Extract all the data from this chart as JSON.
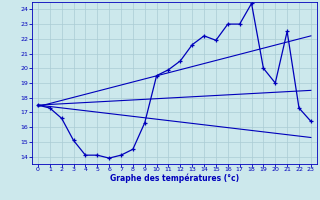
{
  "title": "Graphe des températures (°c)",
  "bg_color": "#cce8ec",
  "grid_color": "#aaccd4",
  "line_color": "#0000bb",
  "x_ticks": [
    0,
    1,
    2,
    3,
    4,
    5,
    6,
    7,
    8,
    9,
    10,
    11,
    12,
    13,
    14,
    15,
    16,
    17,
    18,
    19,
    20,
    21,
    22,
    23
  ],
  "ylim": [
    13.5,
    24.5
  ],
  "xlim": [
    -0.5,
    23.5
  ],
  "y_ticks": [
    14,
    15,
    16,
    17,
    18,
    19,
    20,
    21,
    22,
    23,
    24
  ],
  "series1_x": [
    0,
    1,
    2,
    3,
    4,
    5,
    6,
    7,
    8,
    9,
    10,
    11,
    12,
    13,
    14,
    15,
    16,
    17,
    18,
    19,
    20,
    21,
    22,
    23
  ],
  "series1_y": [
    17.5,
    17.3,
    16.6,
    15.1,
    14.1,
    14.1,
    13.9,
    14.1,
    14.5,
    16.3,
    19.5,
    19.9,
    20.5,
    21.6,
    22.2,
    21.9,
    23.0,
    23.0,
    24.4,
    20.0,
    19.0,
    22.5,
    17.3,
    16.4
  ],
  "series2_x": [
    0,
    23
  ],
  "series2_y": [
    17.5,
    15.3
  ],
  "series3_x": [
    0,
    23
  ],
  "series3_y": [
    17.5,
    18.5
  ],
  "series4_x": [
    0,
    23
  ],
  "series4_y": [
    17.4,
    22.2
  ]
}
